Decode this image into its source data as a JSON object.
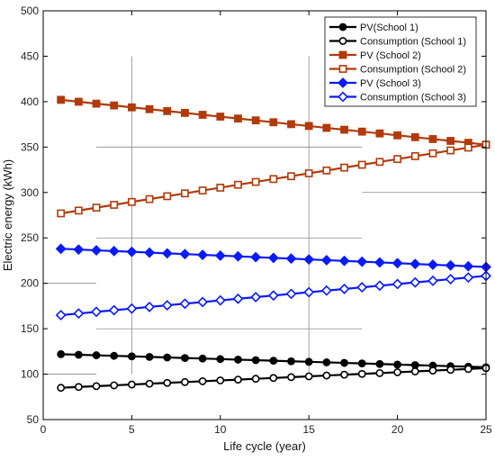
{
  "chart_data": {
    "type": "line",
    "xlabel": "Life cycle (year)",
    "ylabel": "Electric energy (kWh)",
    "xlim": [
      0,
      25
    ],
    "ylim": [
      50,
      500
    ],
    "xticks": [
      0,
      5,
      10,
      15,
      20,
      25
    ],
    "yticks": [
      50,
      100,
      150,
      200,
      250,
      300,
      350,
      400,
      450,
      500
    ],
    "x": [
      1,
      2,
      3,
      4,
      5,
      6,
      7,
      8,
      9,
      10,
      11,
      12,
      13,
      14,
      15,
      16,
      17,
      18,
      19,
      20,
      21,
      22,
      23,
      24,
      25
    ],
    "legend_position": "top-right",
    "grid": "partial",
    "series": [
      {
        "name": "PV(School 1)",
        "color": "#000000",
        "marker": "circle",
        "filled": true,
        "values": [
          122,
          121.4,
          120.8,
          120.2,
          119.6,
          119,
          118.4,
          117.8,
          117.2,
          116.6,
          116,
          115.4,
          114.8,
          114.2,
          113.6,
          113,
          112.4,
          111.8,
          111.2,
          110.6,
          110,
          109.4,
          108.8,
          108.2,
          107.6
        ]
      },
      {
        "name": "Consumption (School 1)",
        "color": "#000000",
        "marker": "circle",
        "filled": false,
        "values": [
          85,
          85.9,
          86.8,
          87.7,
          88.6,
          89.5,
          90.4,
          91.3,
          92.2,
          93.1,
          94,
          94.9,
          95.8,
          96.7,
          97.6,
          98.5,
          99.4,
          100.3,
          101.2,
          102.1,
          103,
          103.9,
          104.8,
          105.7,
          106.6
        ]
      },
      {
        "name": "PV (School 2)",
        "color": "#b23a0a",
        "marker": "square",
        "filled": true,
        "values": [
          402,
          399.9,
          397.8,
          395.8,
          393.7,
          391.7,
          389.6,
          387.6,
          385.5,
          383.5,
          381.4,
          379.4,
          377.3,
          375.2,
          373.2,
          371.1,
          369.1,
          367,
          365,
          362.9,
          360.9,
          358.8,
          356.8,
          354.7,
          352.6
        ]
      },
      {
        "name": "Consumption (School 2)",
        "color": "#b23a0a",
        "marker": "square",
        "filled": false,
        "values": [
          277,
          280.1,
          283.3,
          286.4,
          289.6,
          292.7,
          295.9,
          299,
          302.2,
          305.3,
          308.5,
          311.6,
          314.8,
          317.9,
          321.1,
          324.2,
          327.4,
          330.5,
          333.7,
          336.8,
          340,
          343.1,
          346.3,
          349.4,
          352.6
        ]
      },
      {
        "name": "PV (School 3)",
        "color": "#0a1aff",
        "marker": "diamond",
        "filled": true,
        "values": [
          238,
          237.2,
          236.3,
          235.5,
          234.7,
          233.8,
          233,
          232.2,
          231.3,
          230.5,
          229.7,
          228.8,
          228,
          227.2,
          226.3,
          225.5,
          224.7,
          223.8,
          223,
          222.2,
          221.3,
          220.5,
          219.7,
          218.8,
          218
        ]
      },
      {
        "name": "Consumption (School 3)",
        "color": "#0a1aff",
        "marker": "diamond",
        "filled": false,
        "values": [
          165,
          166.8,
          168.6,
          170.4,
          172.2,
          174,
          175.8,
          177.6,
          179.4,
          181.2,
          183,
          184.8,
          186.6,
          188.4,
          190.2,
          192,
          193.8,
          195.6,
          197.4,
          199.2,
          201,
          202.8,
          204.6,
          206.4,
          208.2
        ]
      }
    ]
  }
}
